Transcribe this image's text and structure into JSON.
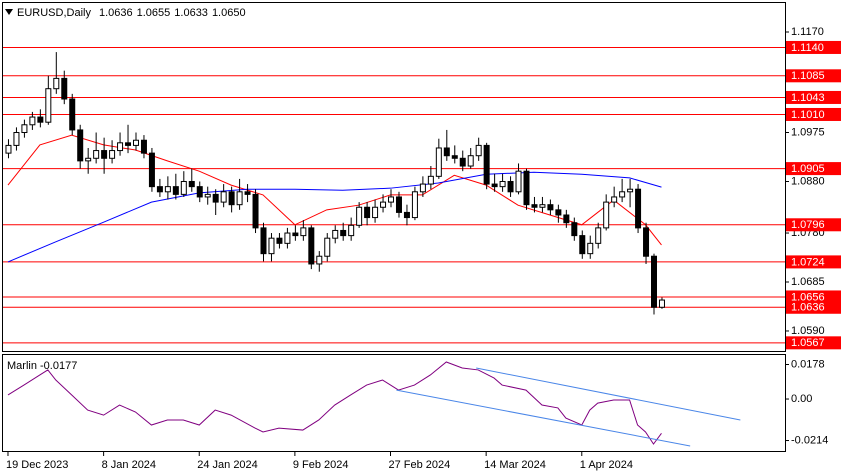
{
  "chart_data": [
    {
      "type": "candlestick",
      "title": "EURUSD,Daily",
      "ohlc_labels": [
        "1.0636",
        "1.0655",
        "1.0633",
        "1.0650"
      ],
      "open": [
        1.0935,
        1.095,
        1.0975,
        1.099,
        1.1005,
        1.0995,
        1.106,
        1.108,
        1.104,
        1.098,
        1.092,
        1.0925,
        1.094,
        1.0925,
        1.094,
        1.0955,
        1.095,
        1.096,
        1.0935,
        1.087,
        1.086,
        1.087,
        1.0855,
        1.088,
        1.087,
        1.085,
        1.0855,
        1.084,
        1.086,
        1.0835,
        1.086,
        1.0855,
        1.079,
        1.074,
        1.077,
        1.076,
        1.078,
        1.0775,
        1.079,
        1.072,
        1.0735,
        1.077,
        1.0785,
        1.0775,
        1.0795,
        1.083,
        1.081,
        1.083,
        1.084,
        1.085,
        1.082,
        1.081,
        1.086,
        1.0875,
        1.089,
        1.0945,
        1.093,
        1.0925,
        1.091,
        1.093,
        1.095,
        1.0875,
        1.087,
        1.088,
        1.086,
        1.09,
        1.0835,
        1.083,
        1.0835,
        1.0825,
        1.0815,
        1.08,
        1.0775,
        1.074,
        1.076,
        1.079,
        1.084,
        1.085,
        1.086,
        1.0865,
        1.079,
        1.0735,
        1.0636
      ],
      "high": [
        1.0962,
        1.0985,
        1.1,
        1.1015,
        1.102,
        1.1085,
        1.1131,
        1.1095,
        1.105,
        1.099,
        1.0945,
        1.0975,
        1.0965,
        1.096,
        1.0975,
        1.099,
        1.0975,
        1.097,
        1.0945,
        1.0885,
        1.089,
        1.0895,
        1.09,
        1.0905,
        1.088,
        1.087,
        1.0865,
        1.0875,
        1.087,
        1.0885,
        1.0875,
        1.0865,
        1.08,
        1.078,
        1.078,
        1.079,
        1.0795,
        1.0805,
        1.0795,
        1.0745,
        1.078,
        1.0795,
        1.08,
        1.081,
        1.084,
        1.084,
        1.0845,
        1.0855,
        1.0865,
        1.086,
        1.0835,
        1.087,
        1.089,
        1.091,
        1.0963,
        1.098,
        1.095,
        1.094,
        1.0945,
        1.0965,
        1.0955,
        1.0895,
        1.0895,
        1.089,
        1.0915,
        1.0905,
        1.085,
        1.085,
        1.0845,
        1.0835,
        1.0825,
        1.081,
        1.0785,
        1.0775,
        1.08,
        1.0855,
        1.087,
        1.0885,
        1.0885,
        1.0875,
        1.08,
        1.074,
        1.0655
      ],
      "low": [
        1.0925,
        1.094,
        1.0965,
        1.098,
        1.0985,
        1.099,
        1.105,
        1.103,
        1.097,
        1.0905,
        1.0895,
        1.0915,
        1.0895,
        1.0915,
        1.093,
        1.0935,
        1.094,
        1.0925,
        1.086,
        1.085,
        1.0845,
        1.0845,
        1.085,
        1.086,
        1.084,
        1.0835,
        1.0815,
        1.083,
        1.082,
        1.0825,
        1.084,
        1.078,
        1.0725,
        1.0725,
        1.075,
        1.075,
        1.0765,
        1.0765,
        1.071,
        1.0705,
        1.0725,
        1.076,
        1.0765,
        1.0765,
        1.079,
        1.0795,
        1.08,
        1.082,
        1.083,
        1.081,
        1.0795,
        1.0805,
        1.085,
        1.0865,
        1.0885,
        1.092,
        1.0915,
        1.09,
        1.0905,
        1.092,
        1.0865,
        1.086,
        1.086,
        1.085,
        1.0855,
        1.0825,
        1.082,
        1.082,
        1.0815,
        1.08,
        1.079,
        1.0765,
        1.073,
        1.073,
        1.075,
        1.0785,
        1.083,
        1.084,
        1.083,
        1.078,
        1.072,
        1.0622,
        1.0633
      ],
      "close": [
        1.095,
        1.0975,
        1.099,
        1.1005,
        1.0995,
        1.106,
        1.108,
        1.104,
        1.098,
        1.092,
        1.0925,
        1.094,
        1.0925,
        1.094,
        1.0955,
        1.095,
        1.096,
        1.0935,
        1.087,
        1.086,
        1.087,
        1.0855,
        1.088,
        1.087,
        1.085,
        1.0855,
        1.084,
        1.086,
        1.0835,
        1.086,
        1.0855,
        1.079,
        1.074,
        1.077,
        1.076,
        1.078,
        1.0775,
        1.079,
        1.072,
        1.0735,
        1.077,
        1.0785,
        1.0775,
        1.0795,
        1.083,
        1.081,
        1.083,
        1.084,
        1.085,
        1.082,
        1.081,
        1.086,
        1.0875,
        1.089,
        1.0945,
        1.093,
        1.0925,
        1.091,
        1.093,
        1.095,
        1.0875,
        1.087,
        1.088,
        1.086,
        1.09,
        1.0835,
        1.083,
        1.0835,
        1.0825,
        1.0815,
        1.08,
        1.0775,
        1.074,
        1.076,
        1.079,
        1.084,
        1.085,
        1.086,
        1.0865,
        1.079,
        1.0735,
        1.0636,
        1.065
      ],
      "up_color": "#ffffff",
      "down_color": "#000000",
      "outline_color": "#000000",
      "series": [
        {
          "color": "#ff0000",
          "x": [
            0,
            4,
            8,
            12,
            16,
            20,
            24,
            28,
            32,
            36,
            40,
            44,
            48,
            52,
            56,
            60,
            64,
            68,
            72,
            76,
            80,
            82
          ],
          "values": [
            1.0873,
            1.0951,
            1.097,
            1.0951,
            1.0941,
            1.092,
            1.09,
            1.0873,
            1.0854,
            1.0796,
            1.0825,
            1.0834,
            1.0854,
            1.0854,
            1.0892,
            1.0873,
            1.0834,
            1.0815,
            1.0796,
            1.0844,
            1.0796,
            1.0757
          ]
        },
        {
          "color": "#0000ff",
          "x": [
            0,
            6,
            12,
            18,
            24,
            30,
            36,
            42,
            48,
            54,
            60,
            66,
            72,
            78,
            82
          ],
          "values": [
            1.0724,
            1.0763,
            1.0801,
            1.084,
            1.0858,
            1.0865,
            1.0865,
            1.0863,
            1.0867,
            1.0877,
            1.0894,
            1.0898,
            1.0894,
            1.0887,
            1.0869
          ]
        }
      ],
      "level_color": "#ff0000",
      "levels": [
        {
          "value": 1.114,
          "label": "1.1140"
        },
        1.1085,
        1.1043,
        {
          "value": 1.101,
          "label": "1.1010"
        },
        1.0905,
        1.0796,
        1.0724,
        1.0656,
        1.0636,
        1.0567
      ],
      "xlim": [
        -0.625,
        97.5
      ],
      "ylim": [
        1.05531,
        1.12243
      ],
      "yticks": [
        {
          "value": 1.117,
          "label": "1.1170"
        },
        1.0975,
        {
          "value": 1.088,
          "label": "1.0880"
        },
        {
          "value": 1.078,
          "label": "1.0780"
        },
        1.0685,
        {
          "value": 1.059,
          "label": "1.0590"
        }
      ]
    },
    {
      "type": "line",
      "title": "Marlin -0.0177",
      "series": [
        {
          "color": "#800080",
          "x": [
            0,
            2,
            4,
            5,
            6,
            8,
            10,
            12,
            14,
            16,
            18,
            20,
            22,
            24,
            26,
            28,
            31,
            32,
            34,
            37,
            39,
            41,
            43,
            45,
            47,
            49,
            51,
            53,
            55,
            57,
            59,
            61,
            62,
            65,
            67,
            69,
            70,
            72,
            73,
            74,
            76,
            78,
            79,
            80,
            81,
            82
          ],
          "values": [
            0.0021,
            0.0072,
            0.0124,
            0.015,
            0.0098,
            0.0021,
            -0.0057,
            -0.0083,
            -0.0031,
            -0.0067,
            -0.0134,
            -0.0108,
            -0.0108,
            -0.0134,
            -0.0057,
            -0.0083,
            -0.015,
            -0.017,
            -0.015,
            -0.016,
            -0.0108,
            -0.0031,
            0.0021,
            0.0072,
            0.0098,
            0.0046,
            0.0072,
            0.0124,
            0.0191,
            0.016,
            0.015,
            0.0108,
            0.0072,
            0.0046,
            -0.0031,
            -0.0046,
            -0.0098,
            -0.0134,
            -0.0057,
            -0.0021,
            -0.0005,
            -0.0005,
            -0.0134,
            -0.017,
            -0.0232,
            -0.0177
          ]
        }
      ],
      "trendlines": [
        {
          "color": "#4a86e8",
          "x": [
            58.75,
            91.9
          ],
          "values": [
            0.016,
            -0.0108
          ]
        },
        {
          "color": "#4a86e8",
          "x": [
            48.75,
            85.6
          ],
          "values": [
            0.0046,
            -0.0242
          ]
        }
      ],
      "xlim": [
        -0.625,
        97.5
      ],
      "ylim": [
        -0.0268,
        0.0227
      ],
      "yticks": [
        0.0178,
        {
          "value": 0,
          "label": "0.00"
        },
        -0.0214
      ],
      "xticks": [
        {
          "value": 0,
          "label": "19 Dec 2023"
        },
        {
          "value": 12,
          "label": "8 Jan 2024"
        },
        {
          "value": 24,
          "label": "24 Jan 2024"
        },
        {
          "value": 36,
          "label": "9 Feb 2024"
        },
        {
          "value": 48,
          "label": "27 Feb 2024"
        },
        {
          "value": 60,
          "label": "14 Mar 2024"
        },
        {
          "value": 72,
          "label": "1 Apr 2024"
        }
      ]
    }
  ]
}
